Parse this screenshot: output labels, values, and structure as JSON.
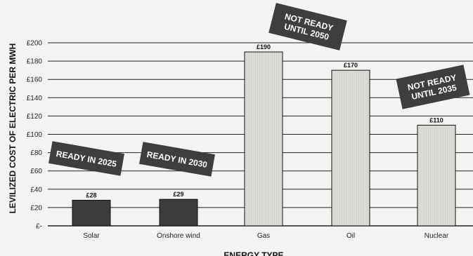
{
  "chart_data": {
    "type": "bar",
    "ylabel": "LEVILIZED COST OF ELECTRIC PER MWH",
    "xlabel": "ENERGY TYPE",
    "ylim": [
      0,
      200
    ],
    "ytick_step": 20,
    "ytick_labels": [
      "£-",
      "£20",
      "£40",
      "£60",
      "£80",
      "£100",
      "£120",
      "£140",
      "£160",
      "£180",
      "£200"
    ],
    "categories": [
      "Solar",
      "Onshore wind",
      "Gas",
      "Oil",
      "Nuclear"
    ],
    "values": [
      28,
      29,
      190,
      170,
      110
    ],
    "value_labels": [
      "£28",
      "£29",
      "£190",
      "£170",
      "£110"
    ],
    "grid": true,
    "colors": {
      "dark_bar": "#3c3c3c",
      "light_bar": "#d9d9d6",
      "stamp": "#3e3e3e",
      "grid": "#222222"
    },
    "annotations": [
      {
        "lines": [
          "READY IN 2025"
        ],
        "category": "Solar"
      },
      {
        "lines": [
          "READY IN 2030"
        ],
        "category": "Onshore wind"
      },
      {
        "lines": [
          "NOT READY",
          "UNTIL 2050"
        ],
        "category": "Gas"
      },
      {
        "lines": [
          "NOT READY",
          "UNTIL 2035"
        ],
        "category": "Nuclear"
      }
    ]
  }
}
